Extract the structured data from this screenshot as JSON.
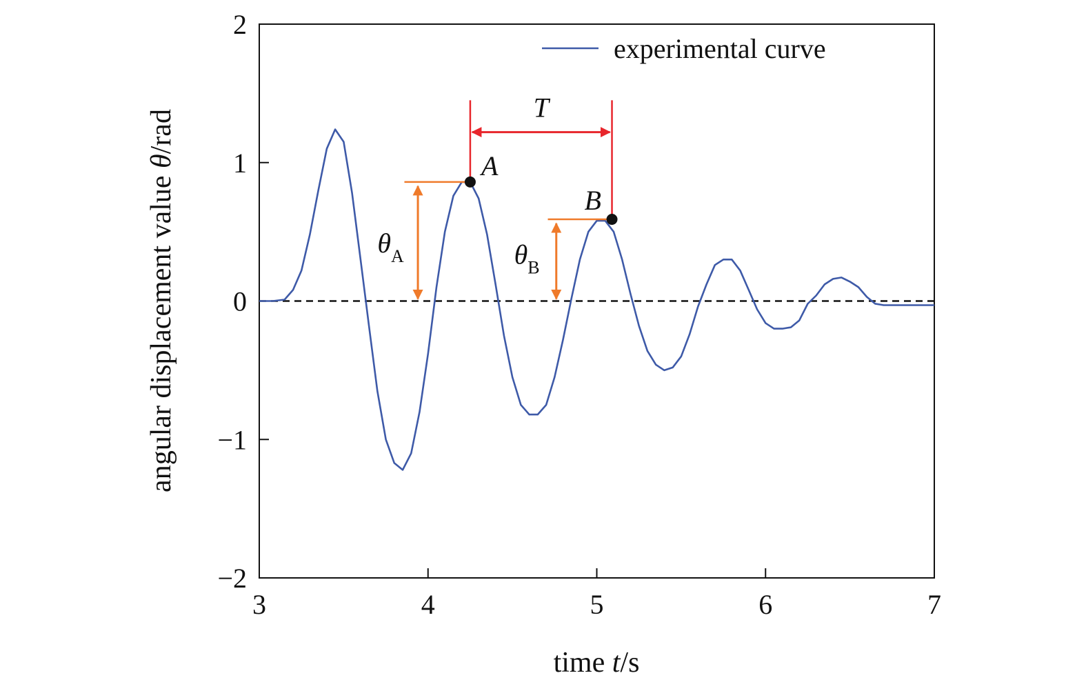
{
  "chart_data": {
    "type": "line",
    "xlabel": {
      "prefix": "time ",
      "var": "t",
      "unit": "/s"
    },
    "ylabel": {
      "prefix": "angular displacement value ",
      "var": "θ",
      "unit": "/rad"
    },
    "xlim": [
      3,
      7
    ],
    "ylim": [
      -2,
      2
    ],
    "xticks": [
      3,
      4,
      5,
      6,
      7
    ],
    "yticks": [
      -2,
      -1,
      0,
      1,
      2
    ],
    "xtick_labels": [
      "3",
      "4",
      "5",
      "6",
      "7"
    ],
    "ytick_labels": [
      "−2",
      "−1",
      "0",
      "1",
      "2"
    ],
    "grid": false,
    "legend_position": "top-right",
    "reference_line": {
      "y": 0,
      "style": "dashed"
    },
    "series": [
      {
        "name": "experimental curve",
        "color": "#3e5aa8",
        "x": [
          3.0,
          3.08,
          3.15,
          3.2,
          3.25,
          3.3,
          3.35,
          3.4,
          3.45,
          3.5,
          3.55,
          3.6,
          3.65,
          3.7,
          3.75,
          3.8,
          3.85,
          3.9,
          3.95,
          4.0,
          4.05,
          4.1,
          4.15,
          4.2,
          4.25,
          4.3,
          4.35,
          4.4,
          4.45,
          4.5,
          4.55,
          4.6,
          4.65,
          4.7,
          4.75,
          4.8,
          4.85,
          4.9,
          4.95,
          5.0,
          5.05,
          5.1,
          5.15,
          5.2,
          5.25,
          5.3,
          5.35,
          5.4,
          5.45,
          5.5,
          5.55,
          5.6,
          5.65,
          5.7,
          5.75,
          5.8,
          5.85,
          5.9,
          5.95,
          6.0,
          6.05,
          6.1,
          6.15,
          6.2,
          6.25,
          6.3,
          6.35,
          6.4,
          6.45,
          6.5,
          6.55,
          6.6,
          6.65,
          6.7,
          6.75,
          6.8,
          6.85,
          6.9,
          6.95,
          7.0
        ],
        "y": [
          0.0,
          0.0,
          0.01,
          0.08,
          0.22,
          0.48,
          0.8,
          1.1,
          1.24,
          1.15,
          0.78,
          0.3,
          -0.18,
          -0.65,
          -1.0,
          -1.17,
          -1.22,
          -1.1,
          -0.8,
          -0.38,
          0.1,
          0.5,
          0.76,
          0.86,
          0.86,
          0.74,
          0.48,
          0.12,
          -0.25,
          -0.55,
          -0.75,
          -0.82,
          -0.82,
          -0.75,
          -0.55,
          -0.28,
          0.02,
          0.3,
          0.5,
          0.58,
          0.58,
          0.5,
          0.3,
          0.05,
          -0.18,
          -0.36,
          -0.46,
          -0.5,
          -0.48,
          -0.4,
          -0.24,
          -0.04,
          0.12,
          0.26,
          0.3,
          0.3,
          0.22,
          0.08,
          -0.06,
          -0.16,
          -0.2,
          -0.2,
          -0.19,
          -0.14,
          -0.02,
          0.04,
          0.12,
          0.16,
          0.17,
          0.14,
          0.1,
          0.03,
          -0.02,
          -0.03,
          -0.03,
          -0.03,
          -0.03,
          -0.03,
          -0.03,
          -0.03
        ]
      }
    ],
    "annotations": {
      "point_A": {
        "label": "A",
        "x": 4.25,
        "y": 0.86
      },
      "point_B": {
        "label": "B",
        "x": 5.09,
        "y": 0.59
      },
      "period": {
        "label": "T",
        "x_start": 4.25,
        "x_end": 5.09,
        "color": "#e8262c"
      },
      "theta_A": {
        "symbol": "θ",
        "sub": "A",
        "y_top": 0.86,
        "color": "#ef7a2a"
      },
      "theta_B": {
        "symbol": "θ",
        "sub": "B",
        "y_top": 0.59,
        "color": "#ef7a2a"
      }
    }
  }
}
